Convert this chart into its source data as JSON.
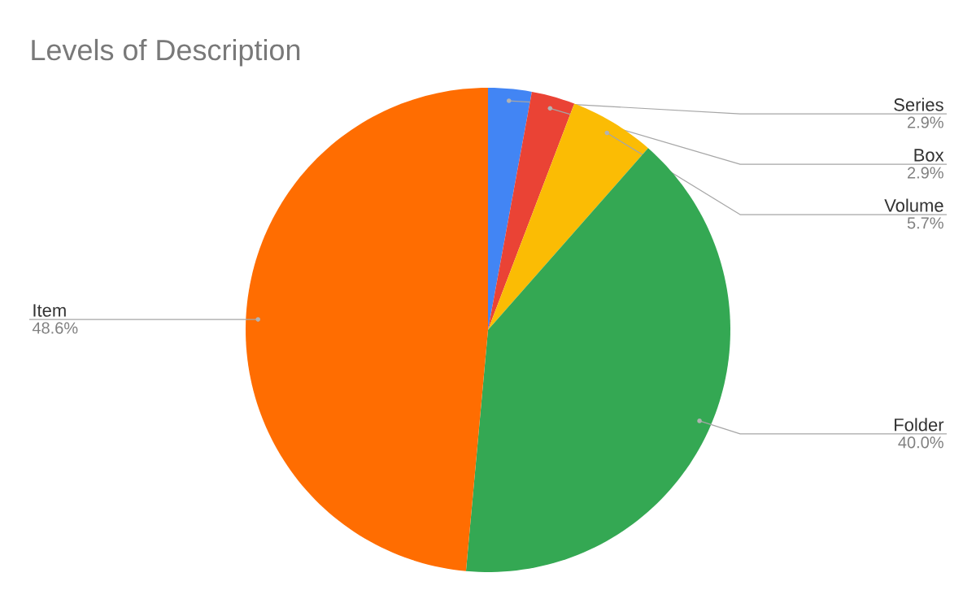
{
  "chart_data": {
    "type": "pie",
    "title": "Levels of Description",
    "categories": [
      "Series",
      "Box",
      "Volume",
      "Folder",
      "Item"
    ],
    "values": [
      2.9,
      2.9,
      5.7,
      40.0,
      48.6
    ],
    "value_labels": [
      "2.9%",
      "2.9%",
      "5.7%",
      "40.0%",
      "48.6%"
    ],
    "colors": [
      "#4285f4",
      "#ea4335",
      "#fbbc04",
      "#34a853",
      "#ff6d01"
    ]
  }
}
